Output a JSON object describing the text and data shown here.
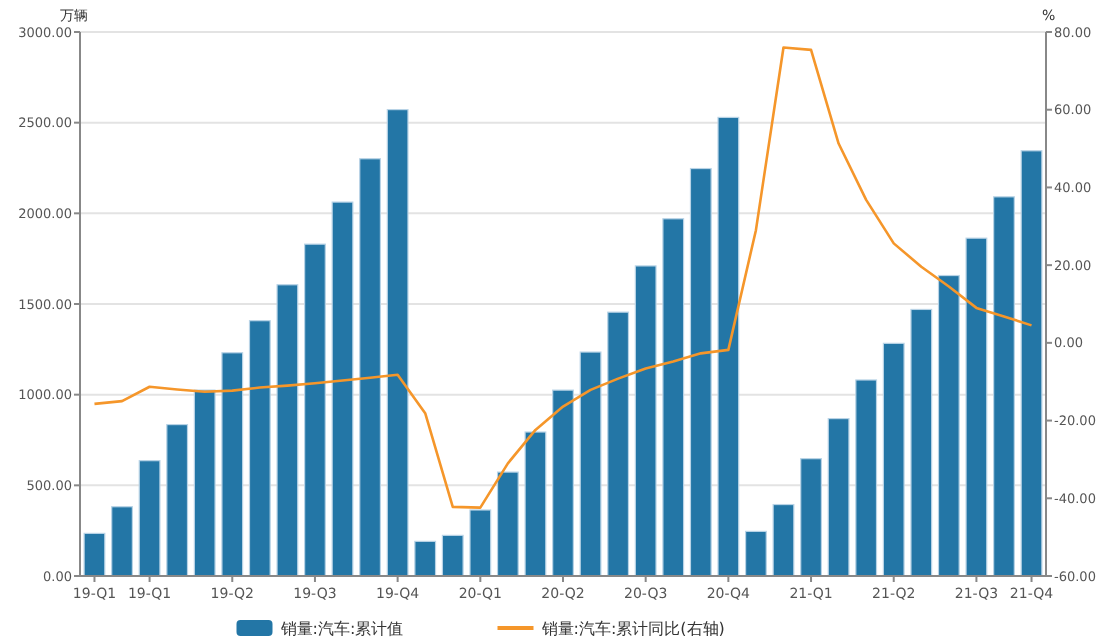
{
  "chart_data": {
    "type": "bar",
    "ylabel": "万辆",
    "y2label": "%",
    "categories": [
      "19-Q1",
      null,
      "19-Q1",
      null,
      null,
      "19-Q2",
      null,
      null,
      "19-Q3",
      null,
      null,
      "19-Q4",
      null,
      null,
      "20-Q1",
      null,
      null,
      "20-Q2",
      null,
      null,
      "20-Q3",
      null,
      null,
      "20-Q4",
      null,
      null,
      "21-Q1",
      null,
      null,
      "21-Q2",
      null,
      null,
      "21-Q3",
      null,
      "21-Q4"
    ],
    "series": [
      {
        "name": "销量:汽车:累计值",
        "color": "#2376a6",
        "values": [
          235,
          382,
          636,
          835,
          1025,
          1231,
          1408,
          1606,
          1830,
          2062,
          2301,
          2572,
          191,
          224,
          364,
          573,
          794,
          1025,
          1235,
          1455,
          1710,
          1970,
          2247,
          2529,
          246,
          394,
          647,
          868,
          1081,
          1283,
          1470,
          1657,
          1863,
          2091,
          2345
        ]
      },
      {
        "name": "销量:汽车:累计同比(右轴)",
        "type": "line",
        "axis": "y2",
        "color": "#f5962a",
        "values": [
          -15.7,
          -15,
          -11.3,
          -12,
          -12.6,
          -12.3,
          -11.5,
          -11,
          -10.4,
          -9.7,
          -9,
          -8.2,
          -18.1,
          -42.2,
          -42.4,
          -31,
          -22.4,
          -16.4,
          -12.1,
          -9.2,
          -6.6,
          -4.8,
          -2.7,
          -1.8,
          29,
          76,
          75.4,
          51.3,
          36.8,
          25.6,
          19.6,
          14.5,
          9,
          6.8,
          4.5
        ]
      }
    ],
    "ylim": [
      0,
      3000
    ],
    "yticks": [
      {
        "value": 0,
        "label": "0.00"
      },
      {
        "value": 500,
        "label": "500.00"
      },
      {
        "value": 1000,
        "label": "1000.00"
      },
      {
        "value": 1500,
        "label": "1500.00"
      },
      {
        "value": 2000,
        "label": "2000.00"
      },
      {
        "value": 2500,
        "label": "2500.00"
      },
      {
        "value": 3000,
        "label": "3000.00"
      }
    ],
    "y2lim": [
      -60,
      80
    ],
    "y2ticks": [
      {
        "value": -60,
        "label": "-60.00"
      },
      {
        "value": -40,
        "label": "-40.00"
      },
      {
        "value": -20,
        "label": "-20.00"
      },
      {
        "value": 0,
        "label": "0.00"
      },
      {
        "value": 20,
        "label": "20.00"
      },
      {
        "value": 40,
        "label": "40.00"
      },
      {
        "value": 60,
        "label": "60.00"
      },
      {
        "value": 80,
        "label": "80.00"
      }
    ],
    "grid": "y",
    "legend": "bottom",
    "marker": "none",
    "line_style": "solid"
  }
}
